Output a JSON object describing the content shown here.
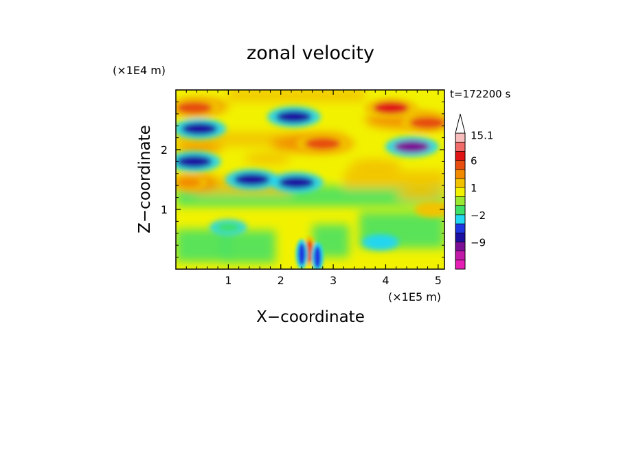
{
  "chart_data": {
    "type": "heatmap",
    "title": "zonal velocity",
    "time_label": "t=172200 s",
    "xlabel": "X−coordinate",
    "ylabel": "Z−coordinate",
    "x_scale_label": "(×1E5 m)",
    "y_scale_label": "(×1E4 m)",
    "xlim": [
      0,
      5.12
    ],
    "ylim": [
      0,
      3.0
    ],
    "x_ticks": [
      {
        "value": 1,
        "label": "1"
      },
      {
        "value": 2,
        "label": "2"
      },
      {
        "value": 3,
        "label": "3"
      },
      {
        "value": 4,
        "label": "4"
      },
      {
        "value": 5,
        "label": "5"
      }
    ],
    "y_ticks": [
      {
        "value": 1,
        "label": "1"
      },
      {
        "value": 2,
        "label": "2"
      }
    ],
    "colorbar": {
      "levels": [
        -15,
        -12,
        -9,
        -6,
        -4,
        -2,
        -1,
        0,
        1,
        2,
        4,
        6,
        9,
        12,
        15.1
      ],
      "colors": [
        "#e61fb4",
        "#c21aa8",
        "#7a0f96",
        "#1a0fa0",
        "#1f37e0",
        "#23d6f2",
        "#3fe068",
        "#9ae830",
        "#f2f200",
        "#f2c200",
        "#f28a00",
        "#e64d0f",
        "#e01414",
        "#f26b6b",
        "#f7bcbc"
      ],
      "labels": [
        {
          "value": 15.1,
          "label": "15.1"
        },
        {
          "value": 6,
          "label": "6"
        },
        {
          "value": 1,
          "label": "1"
        },
        {
          "value": -2,
          "label": "−2"
        },
        {
          "value": -9,
          "label": "−9"
        }
      ],
      "extend_max": true
    },
    "features": [
      {
        "x": 0.45,
        "z": 2.35,
        "value": -6
      },
      {
        "x": 0.35,
        "z": 1.8,
        "value": -6
      },
      {
        "x": 2.25,
        "z": 2.55,
        "value": -6
      },
      {
        "x": 4.5,
        "z": 2.05,
        "value": -9
      },
      {
        "x": 4.1,
        "z": 2.7,
        "value": 9
      },
      {
        "x": 4.8,
        "z": 2.45,
        "value": 6
      },
      {
        "x": 2.3,
        "z": 1.45,
        "value": -6
      },
      {
        "x": 1.45,
        "z": 1.5,
        "value": -6
      },
      {
        "x": 2.8,
        "z": 2.1,
        "value": 6
      },
      {
        "x": 0.35,
        "z": 2.7,
        "value": 6
      },
      {
        "x": 0.25,
        "z": 1.45,
        "value": 4
      },
      {
        "x": 2.55,
        "z": 0.3,
        "value": 6
      },
      {
        "x": 2.4,
        "z": 0.25,
        "value": -4
      },
      {
        "x": 2.7,
        "z": 0.2,
        "value": -4
      },
      {
        "x": 3.9,
        "z": 0.45,
        "value": -2
      },
      {
        "x": 4.9,
        "z": 1.0,
        "value": 2
      },
      {
        "x": 1.0,
        "z": 0.7,
        "value": -1
      }
    ]
  }
}
